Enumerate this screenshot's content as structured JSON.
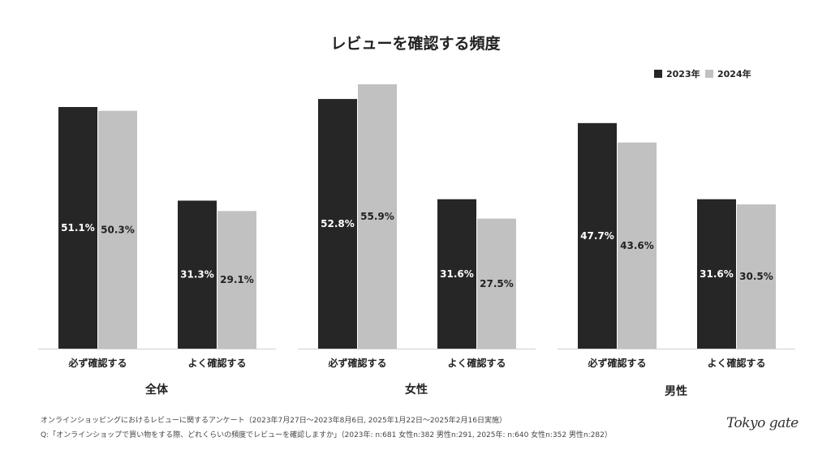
{
  "chart_data": {
    "type": "bar",
    "title": "レビューを確認する頻度",
    "legend": {
      "position": "top-right",
      "entries": [
        "2023年",
        "2024年"
      ]
    },
    "series_colors": [
      "#262626",
      "#c1c1c1"
    ],
    "groups": [
      {
        "name": "全体",
        "categories": [
          "必ず確認する",
          "よく確認する"
        ],
        "series": [
          {
            "name": "2023年",
            "values": [
              51.1,
              31.3
            ]
          },
          {
            "name": "2024年",
            "values": [
              50.3,
              29.1
            ]
          }
        ]
      },
      {
        "name": "女性",
        "categories": [
          "必ず確認する",
          "よく確認する"
        ],
        "series": [
          {
            "name": "2023年",
            "values": [
              52.8,
              31.6
            ]
          },
          {
            "name": "2024年",
            "values": [
              55.9,
              27.5
            ]
          }
        ]
      },
      {
        "name": "男性",
        "categories": [
          "必ず確認する",
          "よく確認する"
        ],
        "series": [
          {
            "name": "2023年",
            "values": [
              47.7,
              31.6
            ]
          },
          {
            "name": "2024年",
            "values": [
              43.6,
              30.5
            ]
          }
        ]
      }
    ],
    "unit": "%",
    "ylim": [
      0,
      60
    ],
    "grid": false
  },
  "notes": {
    "survey": "オンラインショッピングにおけるレビューに関するアンケート（2023年7月27日〜2023年8月6日, 2025年1月22日〜2025年2月16日実施）",
    "question": "Q:「オンラインショップで買い物をする際、どれくらいの頻度でレビューを確認しますか」（2023年: n:681 女性n:382 男性n:291, 2025年: n:640 女性n:352 男性n:282）"
  },
  "logo": "Tokyo gate"
}
